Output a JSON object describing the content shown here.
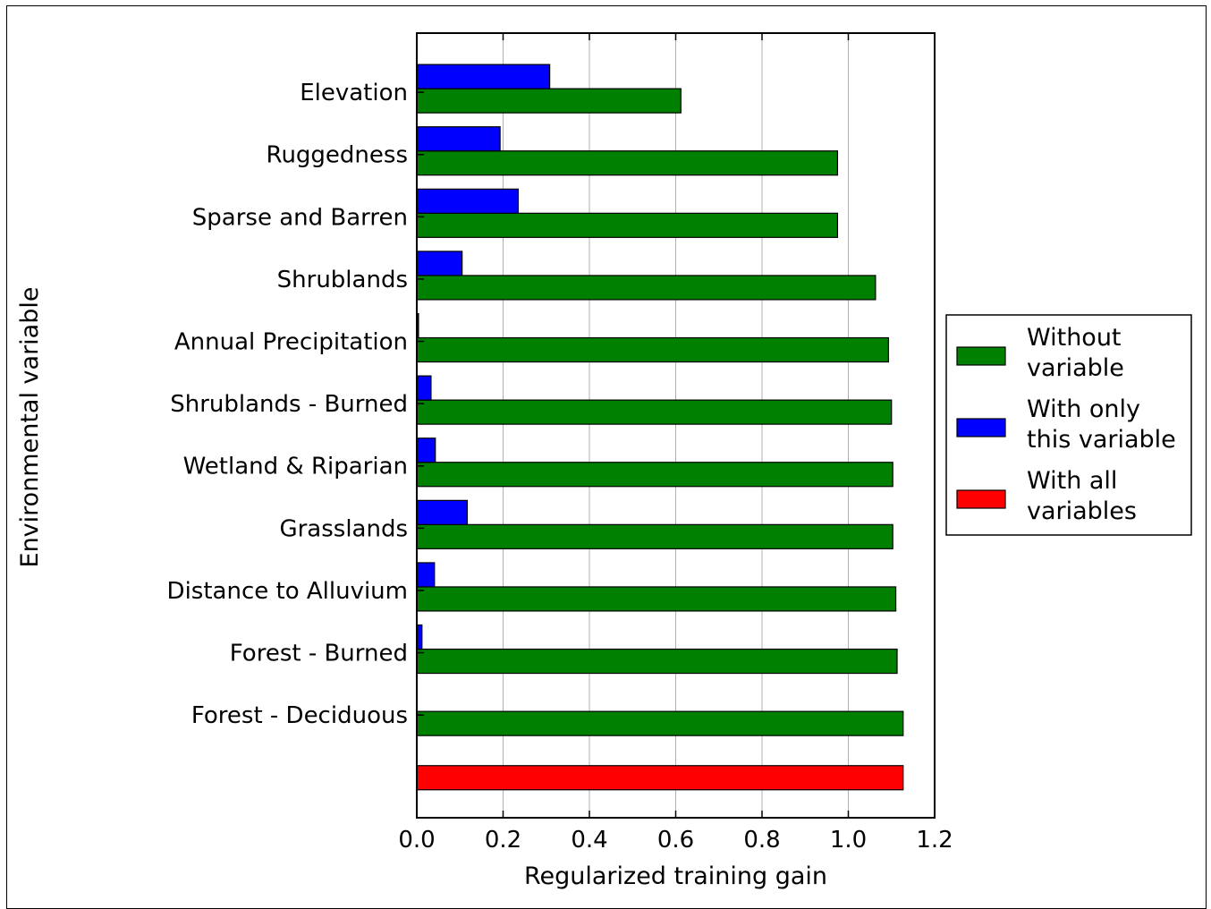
{
  "chart_data": {
    "type": "bar",
    "orientation": "horizontal",
    "xlabel": "Regularized training gain",
    "ylabel": "Environmental variable",
    "xlim": [
      0,
      1.2
    ],
    "xticks": [
      "0.0",
      "0.2",
      "0.4",
      "0.6",
      "0.8",
      "1.0",
      "1.2"
    ],
    "grid": "vertical",
    "legend_position": "right",
    "categories": [
      "Elevation",
      "Ruggedness",
      "Sparse and Barren",
      "Shrublands",
      "Annual Precipitation",
      "Shrublands - Burned",
      "Wetland & Riparian",
      "Grasslands",
      "Distance to Alluvium",
      "Forest - Burned",
      "Forest - Deciduous"
    ],
    "series": [
      {
        "name": "Without variable",
        "color": "#008000",
        "values": [
          0.612,
          0.975,
          0.975,
          1.063,
          1.093,
          1.1,
          1.103,
          1.103,
          1.11,
          1.113,
          1.127
        ]
      },
      {
        "name": "With only this variable",
        "color": "#0000ff",
        "values": [
          0.308,
          0.193,
          0.235,
          0.105,
          0.004,
          0.033,
          0.043,
          0.117,
          0.041,
          0.012,
          0.0
        ]
      }
    ],
    "all_variables": {
      "name": "With all variables",
      "color": "#ff0000",
      "value": 1.127
    },
    "legend": [
      {
        "lines": [
          "Without",
          "variable"
        ],
        "color": "#008000"
      },
      {
        "lines": [
          "With only",
          "this variable"
        ],
        "color": "#0000ff"
      },
      {
        "lines": [
          "With all",
          "variables"
        ],
        "color": "#ff0000"
      }
    ]
  }
}
